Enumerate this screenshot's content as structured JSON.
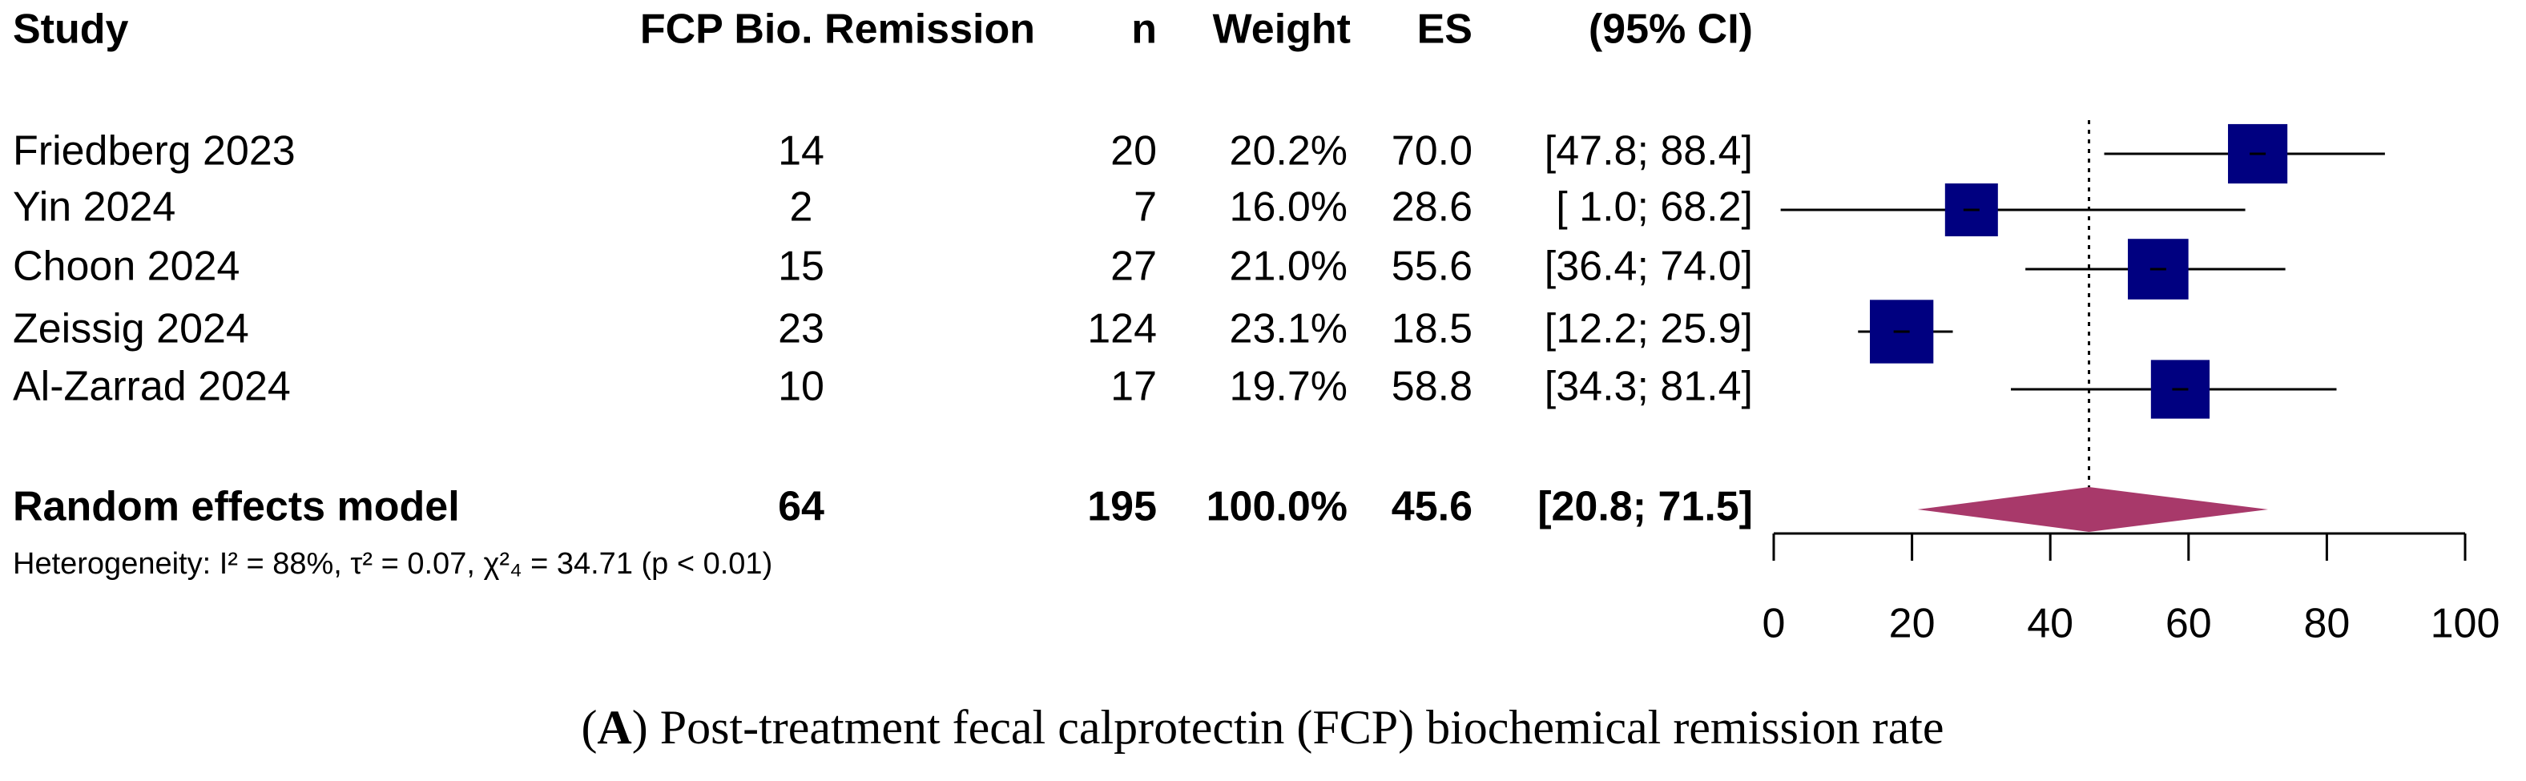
{
  "chart_data": {
    "type": "forest",
    "headers": {
      "study": "Study",
      "events": "FCP Bio. Remission",
      "n": "n",
      "weight": "Weight",
      "es": "ES",
      "ci": "(95% CI)"
    },
    "studies": [
      {
        "name": "Friedberg 2023",
        "events": 14,
        "n": 20,
        "weight": 20.2,
        "weight_label": "20.2%",
        "es": 70.0,
        "es_label": "70.0",
        "lower": 47.8,
        "upper": 88.4,
        "ci_label": "[47.8; 88.4]"
      },
      {
        "name": "Yin 2024",
        "events": 2,
        "n": 7,
        "weight": 16.0,
        "weight_label": "16.0%",
        "es": 28.6,
        "es_label": "28.6",
        "lower": 1.0,
        "upper": 68.2,
        "ci_label": "[ 1.0; 68.2]"
      },
      {
        "name": "Choon 2024",
        "events": 15,
        "n": 27,
        "weight": 21.0,
        "weight_label": "21.0%",
        "es": 55.6,
        "es_label": "55.6",
        "lower": 36.4,
        "upper": 74.0,
        "ci_label": "[36.4; 74.0]"
      },
      {
        "name": "Zeissig 2024",
        "events": 23,
        "n": 124,
        "weight": 23.1,
        "weight_label": "23.1%",
        "es": 18.5,
        "es_label": "18.5",
        "lower": 12.2,
        "upper": 25.9,
        "ci_label": "[12.2; 25.9]"
      },
      {
        "name": "Al-Zarrad 2024",
        "events": 10,
        "n": 17,
        "weight": 19.7,
        "weight_label": "19.7%",
        "es": 58.8,
        "es_label": "58.8",
        "lower": 34.3,
        "upper": 81.4,
        "ci_label": "[34.3; 81.4]"
      }
    ],
    "pooled": {
      "name": "Random effects model",
      "events": 64,
      "n": 195,
      "weight": 100.0,
      "weight_label": "100.0%",
      "es": 45.6,
      "es_label": "45.6",
      "lower": 20.8,
      "upper": 71.5,
      "ci_label": "[20.8; 71.5]"
    },
    "heterogeneity": "Heterogeneity: I² = 88%, τ² = 0.07, χ²₄ = 34.71 (p < 0.01)",
    "box_color": "#000080",
    "diamond_color": "#a8396a",
    "xlim": [
      0,
      100
    ],
    "xticks": [
      0,
      20,
      40,
      60,
      80,
      100
    ],
    "caption": [
      "(",
      "A",
      ") Post-treatment fecal calprotectin (FCP) biochemical remission rate"
    ]
  }
}
